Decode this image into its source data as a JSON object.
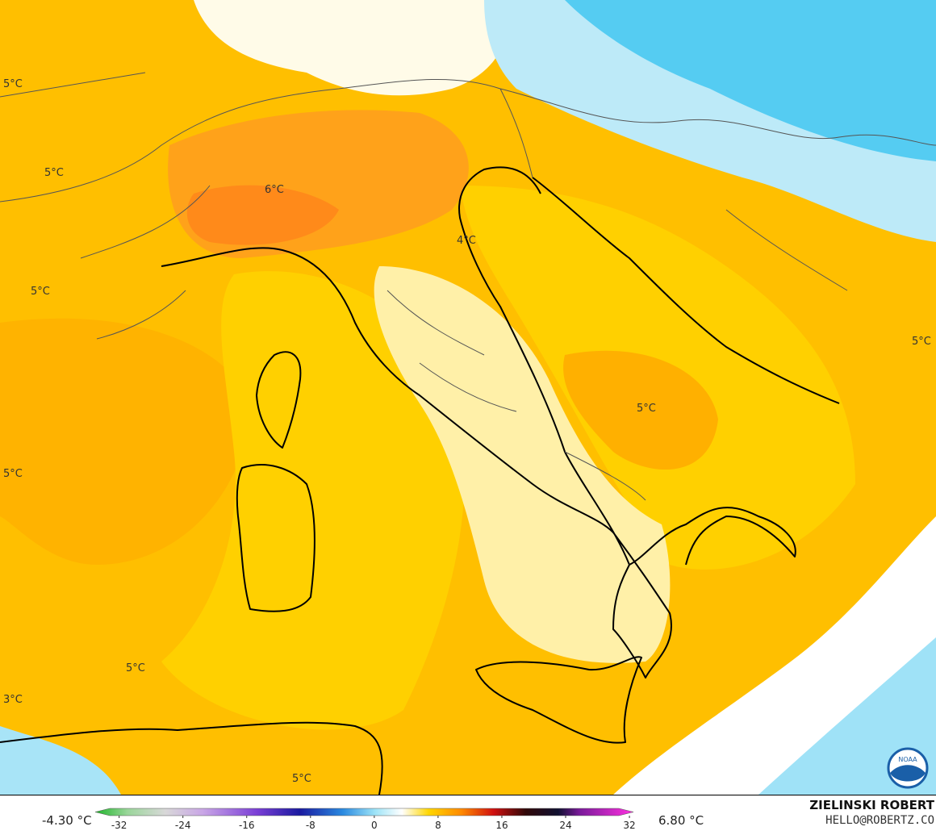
{
  "map_labels": [
    "5°C",
    "5°C",
    "6°C",
    "4°C",
    "5°C",
    "5°C",
    "5°C",
    "5°C",
    "5°C",
    "3°C",
    "5°C"
  ],
  "colorbar": {
    "min_label": "-4.30 °C",
    "max_label": "6.80 °C",
    "lim": [
      -35,
      32.5
    ],
    "ticks": [
      -32,
      -24,
      -16,
      -8,
      0,
      8,
      16,
      24,
      32
    ]
  },
  "credits": {
    "author": "ZIELINSKI ROBERT",
    "contact": "HELLO@ROBERTZ.CO",
    "logo": "NOAA"
  }
}
